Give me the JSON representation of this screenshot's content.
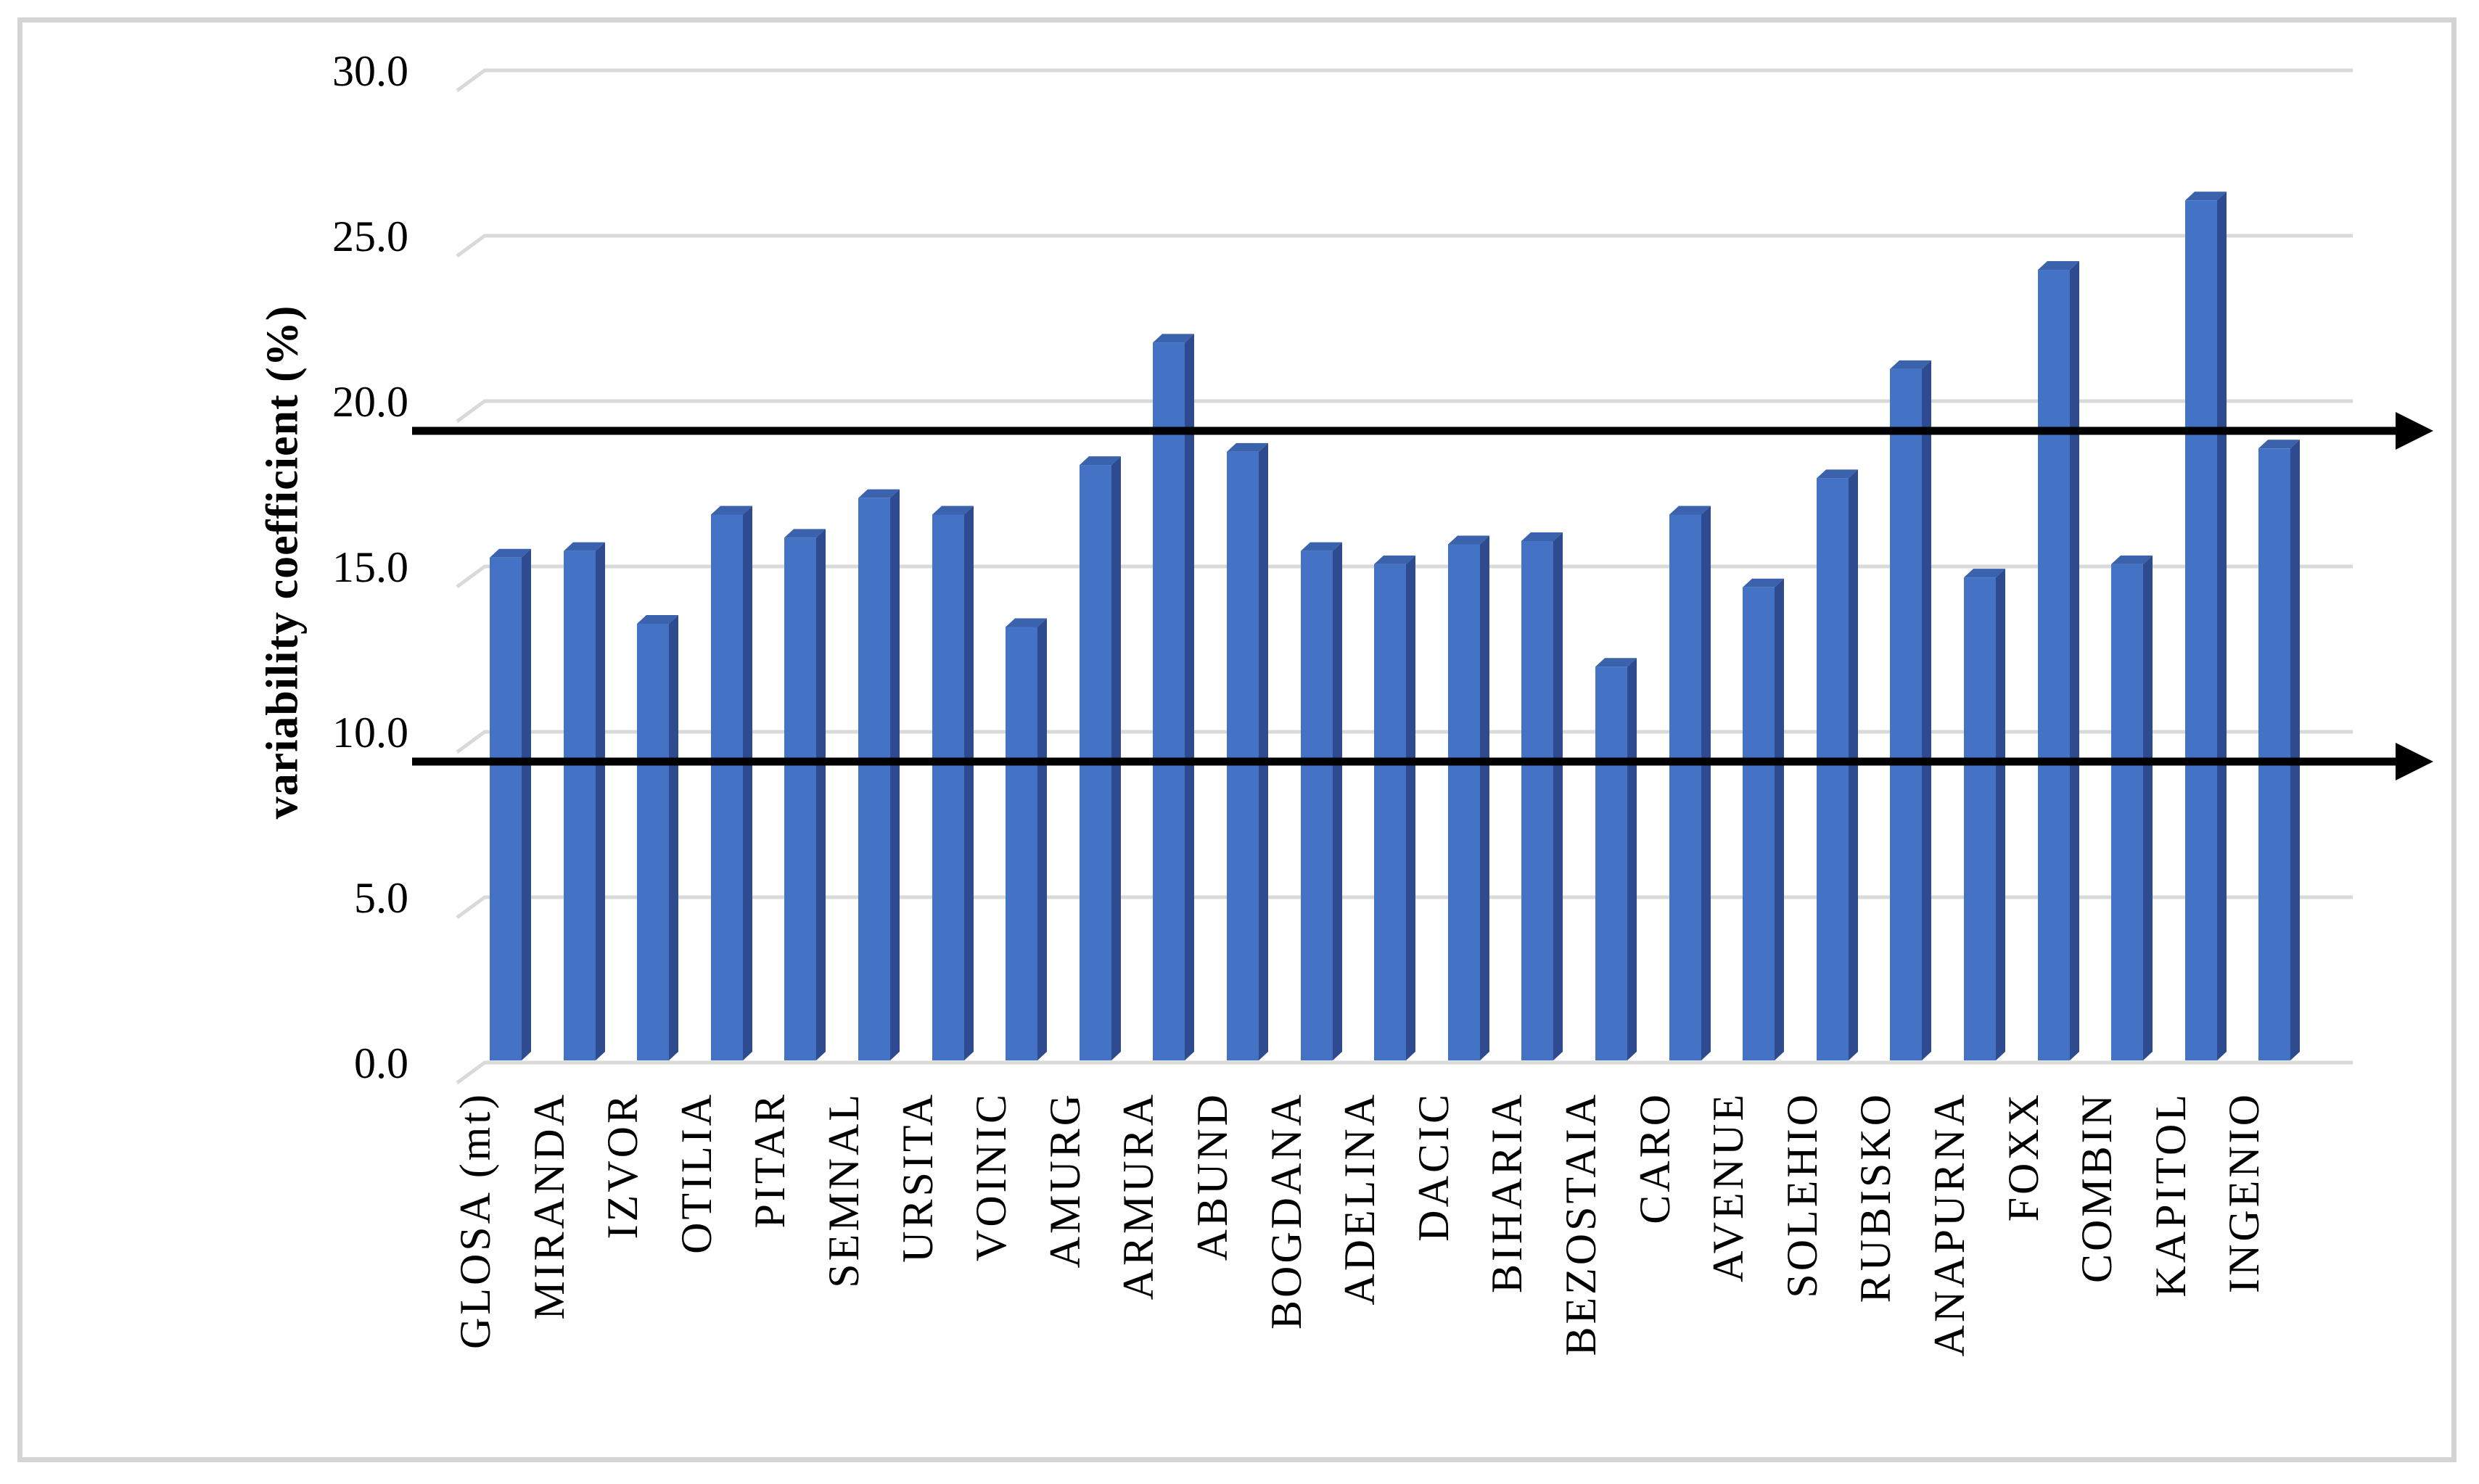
{
  "figure": {
    "background_color": "#ffffff",
    "border_color": "#d4d4d4"
  },
  "chart_data": {
    "type": "bar",
    "title": "",
    "xlabel": "",
    "ylabel": "variability coefficient (%)",
    "ylim": [
      0,
      30
    ],
    "ytick_interval": 5,
    "ytick_labels": [
      "30.0",
      "25.0",
      "20.0",
      "15.0",
      "10.0",
      "5.0",
      "0.0"
    ],
    "grid": true,
    "legend": false,
    "bar_color": "#4472C4",
    "bar_top_color": "#3B62AC",
    "bar_side_color": "#2D4B8E",
    "gridline_color": "#d9d9d9",
    "bar_style": "3d-beveled-column",
    "categories": [
      "GLOSA (mt)",
      "MIRANDA",
      "IZVOR",
      "OTILIA",
      "PITAR",
      "SEMNAL",
      "URSITA",
      "VOINIC",
      "AMURG",
      "ARMURA",
      "ABUND",
      "BOGDANA",
      "ADELINA",
      "DACIC",
      "BIHARIA",
      "BEZOSTAIA",
      "CARO",
      "AVENUE",
      "SOLEHIO",
      "RUBISKO",
      "ANAPURNA",
      "FOXX",
      "COMBIN",
      "KAPITOL",
      "INGENIO"
    ],
    "values": [
      15.4,
      15.6,
      13.4,
      16.7,
      16.0,
      17.2,
      16.7,
      13.3,
      18.2,
      21.9,
      18.6,
      15.6,
      15.2,
      15.8,
      15.9,
      12.1,
      16.7,
      14.5,
      17.8,
      21.1,
      14.8,
      24.1,
      15.2,
      26.2,
      18.7
    ],
    "reference_lines": [
      {
        "value": 19.1,
        "color": "#000000",
        "style": "solid",
        "end": "arrow-right"
      },
      {
        "value": 9.1,
        "color": "#000000",
        "style": "solid",
        "end": "arrow-right"
      }
    ]
  }
}
